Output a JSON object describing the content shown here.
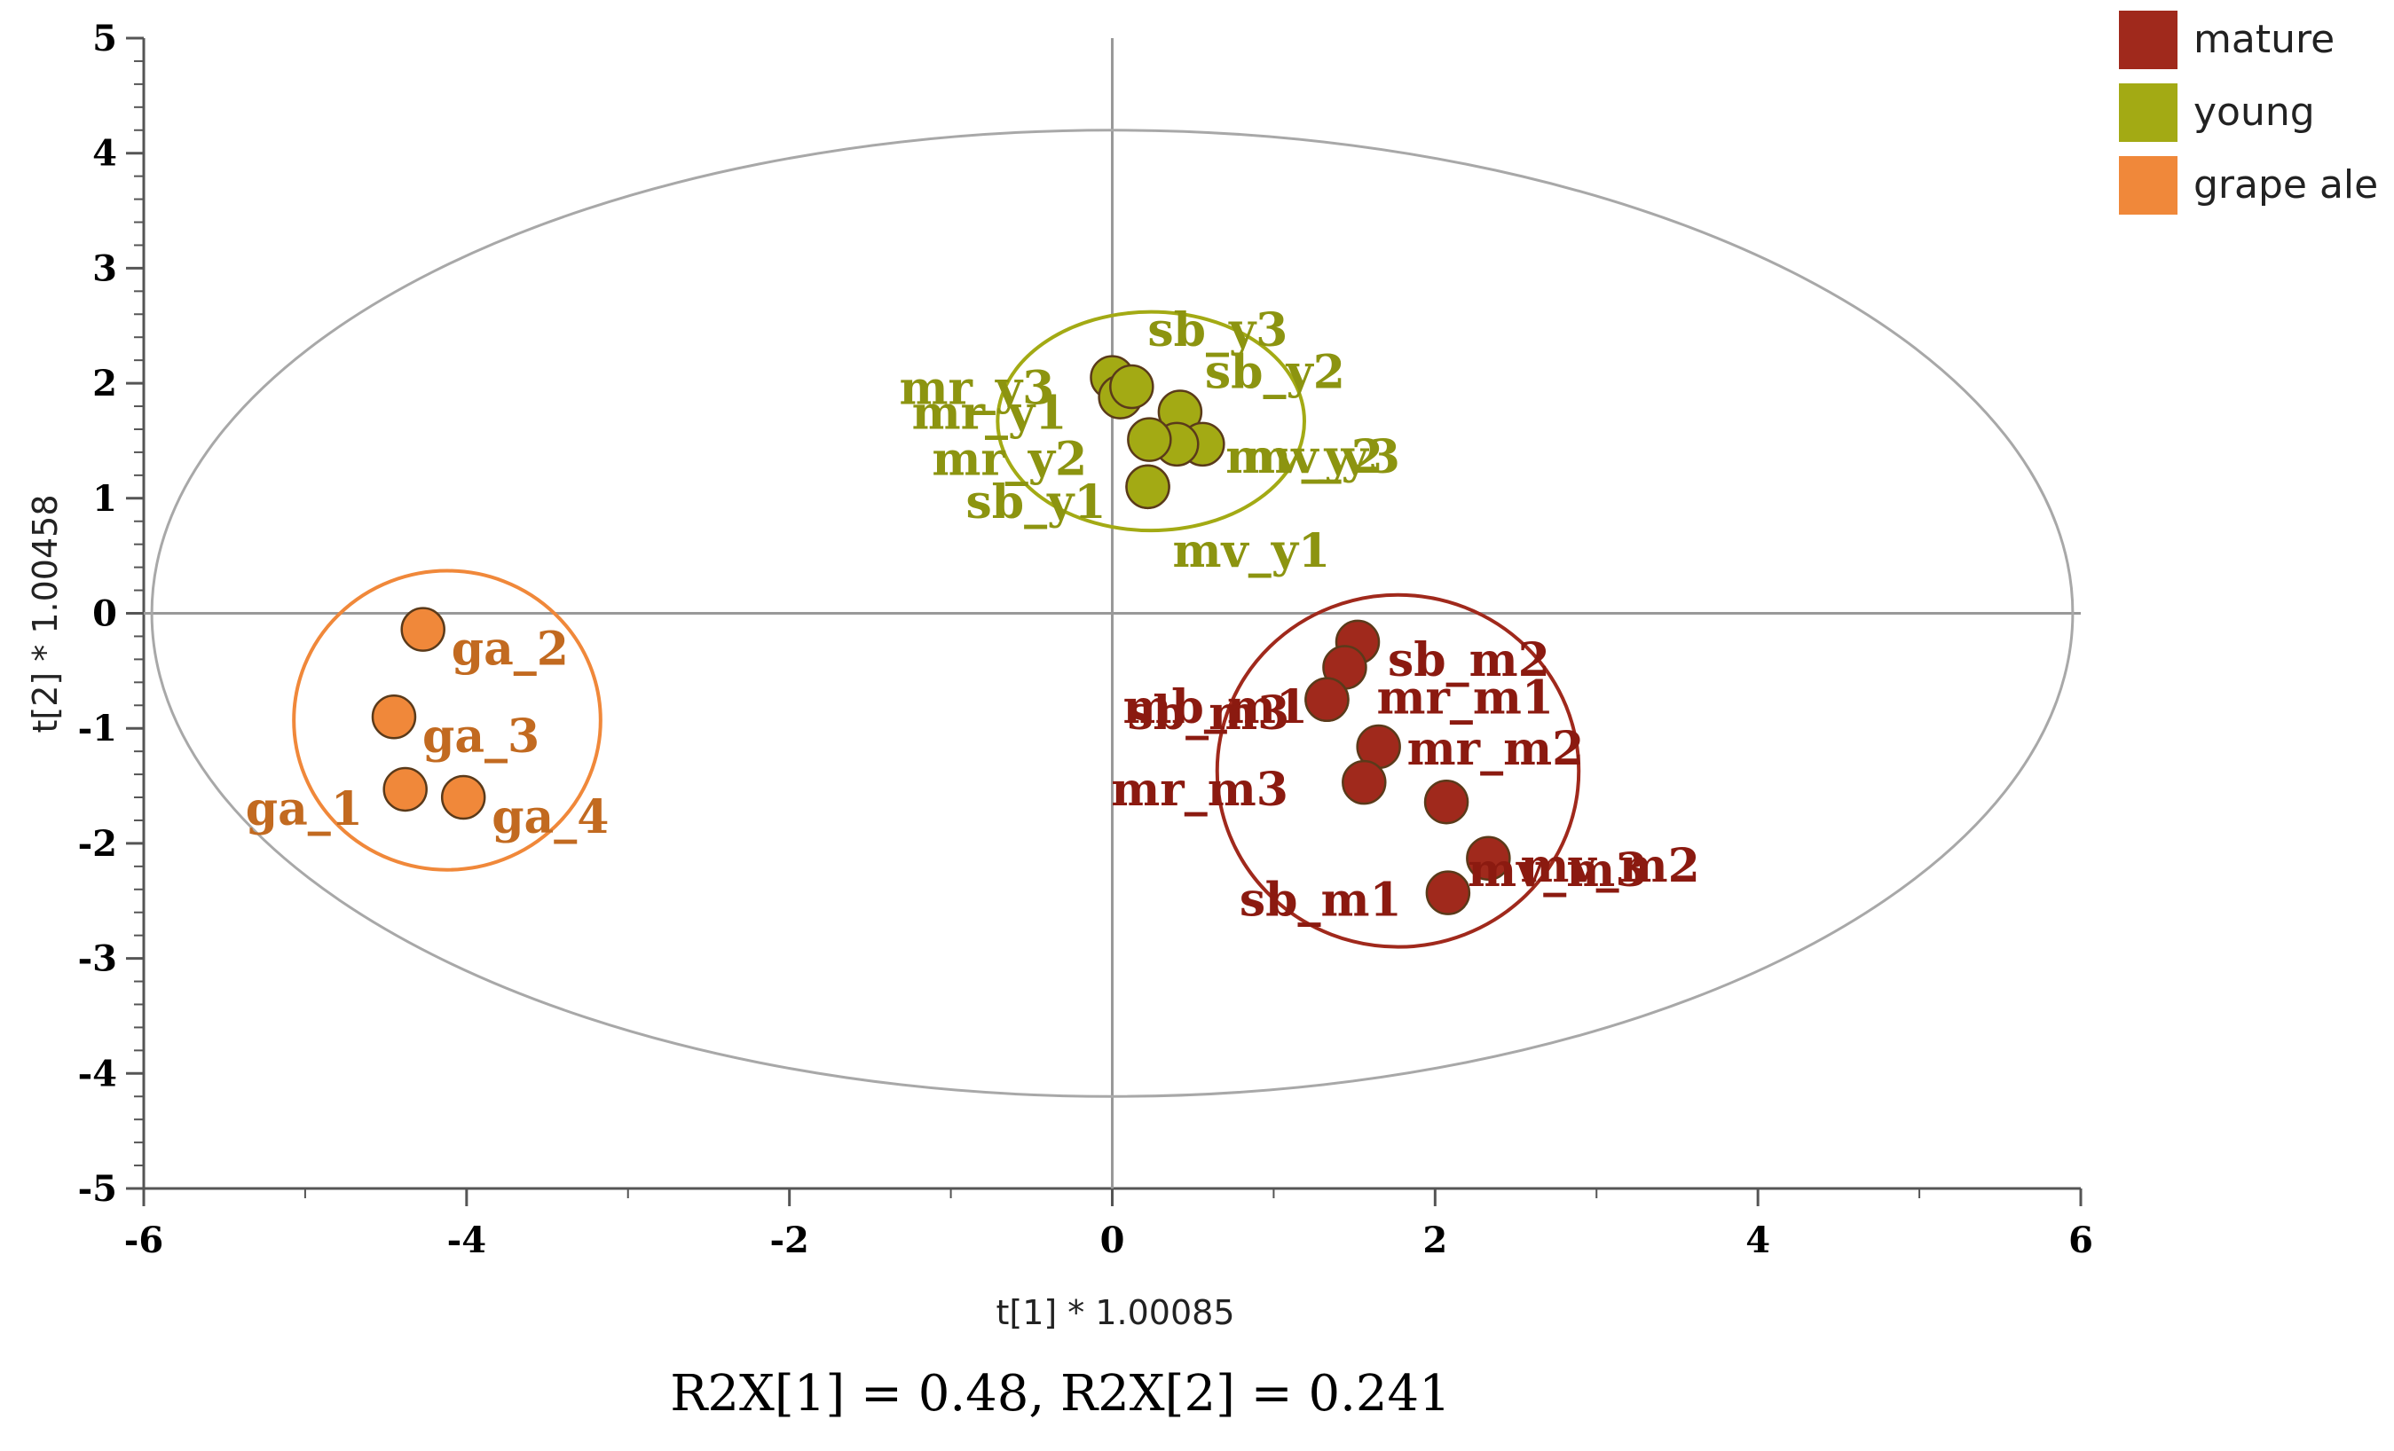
{
  "chart_data": {
    "type": "scatter",
    "xlabel": "t[1] * 1.00085",
    "ylabel": "t[2] * 1.00458",
    "xlim": [
      -6,
      6
    ],
    "ylim": [
      -5,
      5
    ],
    "x_ticks": [
      "-6",
      "-4",
      "-2",
      "0",
      "2",
      "4",
      "6"
    ],
    "y_ticks": [
      "5",
      "4",
      "3",
      "2",
      "1",
      "0",
      "-1",
      "-2",
      "-3",
      "-4",
      "-5"
    ],
    "footer": "R2X[1] = 0.48, R2X[2] = 0.241",
    "hotelling_ellipse": {
      "cx": 0,
      "cy": 0,
      "rx": 5.95,
      "ry": 4.2
    },
    "legend_position": "top-right",
    "series": [
      {
        "name": "mature",
        "color": "#A0291C",
        "label_color": "#8B1A10",
        "group_circle": {
          "cx": 1.77,
          "cy": -1.37,
          "rx": 1.12,
          "ry": 1.53
        },
        "points": [
          {
            "x": 1.52,
            "y": -0.25,
            "label": "sb_m2"
          },
          {
            "x": 1.44,
            "y": -0.47,
            "label": "mr_m1"
          },
          {
            "x": 1.33,
            "y": -0.75,
            "label": "mb_m1"
          },
          {
            "x": 1.33,
            "y": -0.75,
            "label": "sb_m3"
          },
          {
            "x": 1.65,
            "y": -1.16,
            "label": "mr_m2"
          },
          {
            "x": 1.56,
            "y": -1.47,
            "label": "mr_m3"
          },
          {
            "x": 2.07,
            "y": -1.64,
            "label": "mv_m3"
          },
          {
            "x": 2.33,
            "y": -2.13,
            "label": "mv_m2"
          },
          {
            "x": 2.08,
            "y": -2.43,
            "label": "sb_m1"
          }
        ]
      },
      {
        "name": "young",
        "color": "#A3AA14",
        "label_color": "#8C9410",
        "group_circle": {
          "cx": 0.24,
          "cy": 1.67,
          "rx": 0.95,
          "ry": 0.95
        },
        "points": [
          {
            "x": 0.0,
            "y": 2.05,
            "label": "mr_y3"
          },
          {
            "x": 0.05,
            "y": 1.88,
            "label": "mr_y1"
          },
          {
            "x": 0.12,
            "y": 1.97,
            "label": "sb_y3"
          },
          {
            "x": 0.42,
            "y": 1.75,
            "label": "sb_y2"
          },
          {
            "x": 0.56,
            "y": 1.47,
            "label": "mv_y3"
          },
          {
            "x": 0.4,
            "y": 1.47,
            "label": "mv_y2"
          },
          {
            "x": 0.23,
            "y": 1.51,
            "label": "mr_y2"
          },
          {
            "x": 0.22,
            "y": 1.1,
            "label": "sb_y1"
          },
          {
            "x": 0.22,
            "y": 1.1,
            "label": "mv_y1"
          }
        ]
      },
      {
        "name": "grape ale",
        "color": "#F0883A",
        "label_color": "#C26A20",
        "group_circle": {
          "cx": -4.12,
          "cy": -0.93,
          "rx": 0.95,
          "ry": 1.3
        },
        "points": [
          {
            "x": -4.27,
            "y": -0.14,
            "label": "ga_2"
          },
          {
            "x": -4.45,
            "y": -0.9,
            "label": "ga_3"
          },
          {
            "x": -4.38,
            "y": -1.53,
            "label": "ga_1"
          },
          {
            "x": -4.02,
            "y": -1.6,
            "label": "ga_4"
          }
        ]
      }
    ]
  }
}
